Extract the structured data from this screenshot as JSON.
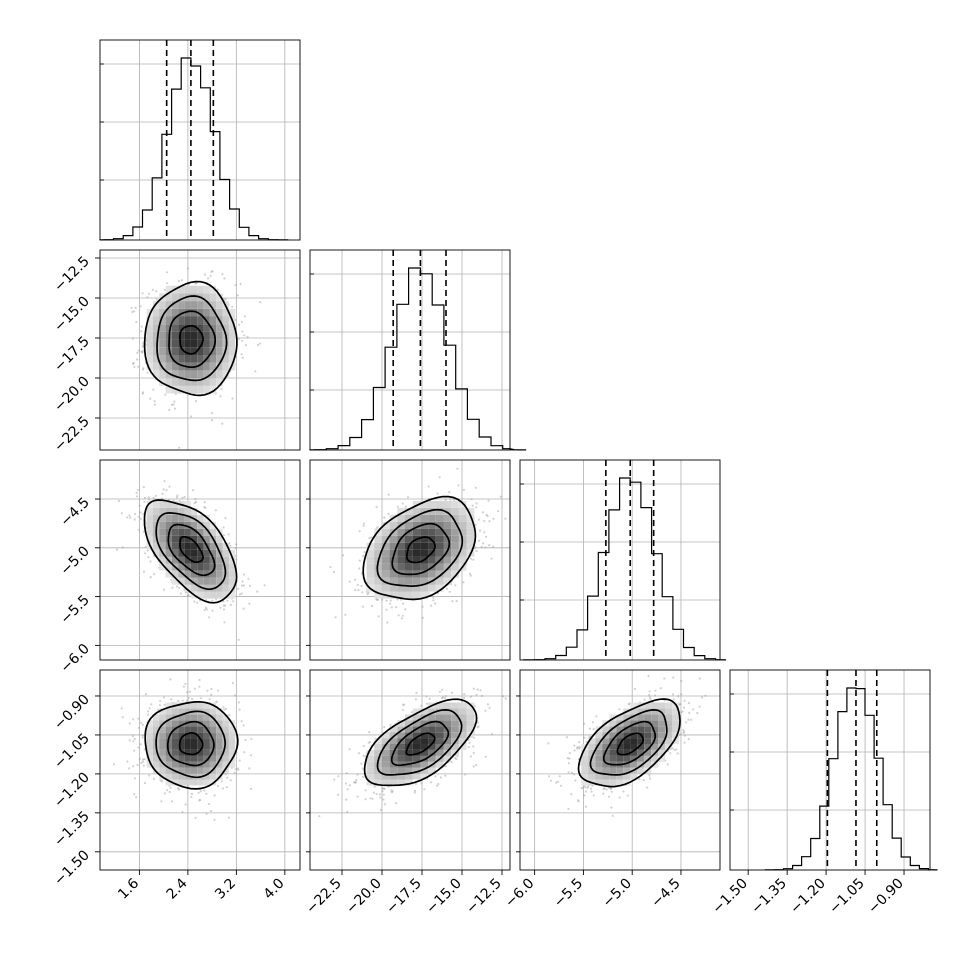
{
  "chart_data": {
    "type": "corner",
    "parameters": [
      {
        "mean": 2.45,
        "sd": 0.38,
        "quantiles": [
          2.05,
          2.45,
          2.82
        ],
        "xlim": [
          0.95,
          4.25
        ],
        "xticks": [
          1.6,
          2.4,
          3.2,
          4.0
        ],
        "ticklabels": [
          "1.6",
          "2.4",
          "3.2",
          "4.0"
        ]
      },
      {
        "mean": -17.6,
        "sd": 1.75,
        "quantiles": [
          -19.3,
          -17.6,
          -16.0
        ],
        "xlim": [
          -24.5,
          -12.0
        ],
        "xticks": [
          -22.5,
          -20.0,
          -17.5,
          -15.0,
          -12.5
        ],
        "ticklabels": [
          "−22.5",
          "−20.0",
          "−17.5",
          "−15.0",
          "−12.5"
        ]
      },
      {
        "mean": -5.02,
        "sd": 0.26,
        "quantiles": [
          -5.27,
          -5.02,
          -4.78
        ],
        "xlim": [
          -6.15,
          -4.1
        ],
        "xticks": [
          -6.0,
          -5.5,
          -5.0,
          -4.5
        ],
        "ticklabels": [
          "−6.0",
          "−5.5",
          "−5.0",
          "−4.5"
        ]
      },
      {
        "mean": -1.085,
        "sd": 0.083,
        "quantiles": [
          -1.195,
          -1.085,
          -1.005
        ],
        "xlim": [
          -1.57,
          -0.8
        ],
        "xticks": [
          -1.5,
          -1.35,
          -1.2,
          -1.05,
          -0.9
        ],
        "ticklabels": [
          "−1.50",
          "−1.35",
          "−1.20",
          "−1.05",
          "−0.90"
        ]
      }
    ],
    "ylim_2d": [
      null,
      [
        -24.5,
        -12.0
      ],
      [
        -6.15,
        -4.1
      ],
      [
        -1.57,
        -0.8
      ]
    ],
    "correlations": {
      "1-0": 0.0,
      "2-0": -0.55,
      "2-1": 0.35,
      "3-0": 0.0,
      "3-1": 0.6,
      "3-2": 0.55
    },
    "contour_levels_sigma": [
      0.5,
      1.0,
      1.5,
      2.0
    ],
    "histogram_bins": 20
  }
}
